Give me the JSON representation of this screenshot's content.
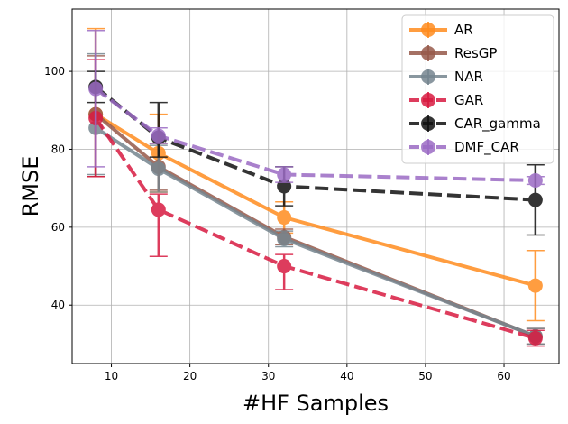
{
  "chart_data": {
    "type": "line",
    "title": "",
    "xlabel": "#HF Samples",
    "ylabel": "RMSE",
    "x": [
      8,
      16,
      32,
      64
    ],
    "xlim": [
      5,
      67
    ],
    "ylim": [
      25,
      116
    ],
    "xticks": [
      10,
      20,
      30,
      40,
      50,
      60
    ],
    "yticks": [
      40,
      60,
      80,
      100
    ],
    "grid": true,
    "legend_position": "top-right",
    "series": [
      {
        "name": "AR",
        "values": [
          89,
          79,
          62.5,
          45
        ],
        "err_low": [
          16,
          10,
          4,
          9
        ],
        "err_high": [
          22,
          10,
          4,
          9
        ],
        "color": "#ff8c1f",
        "dash": "solid"
      },
      {
        "name": "ResGP",
        "values": [
          89,
          75.5,
          57.5,
          32
        ],
        "err_low": [
          16,
          6,
          2,
          2
        ],
        "err_high": [
          15,
          6,
          2,
          2
        ],
        "color": "#96594a",
        "dash": "solid"
      },
      {
        "name": "NAR",
        "values": [
          85.5,
          75,
          57,
          32
        ],
        "err_low": [
          12,
          6,
          2,
          2
        ],
        "err_high": [
          19,
          6,
          2,
          2
        ],
        "color": "#75858f",
        "dash": "solid"
      },
      {
        "name": "GAR",
        "values": [
          88,
          64.5,
          50,
          31.5
        ],
        "err_low": [
          15,
          12,
          6,
          2
        ],
        "err_high": [
          15,
          4,
          3,
          2
        ],
        "color": "#d81b41",
        "dash": "dashed"
      },
      {
        "name": "CAR_gamma",
        "values": [
          96,
          83,
          70.5,
          67
        ],
        "err_low": [
          4,
          5,
          5,
          9
        ],
        "err_high": [
          4,
          9,
          5,
          9
        ],
        "color": "#111111",
        "dash": "dashed"
      },
      {
        "name": "DMF_CAR",
        "values": [
          95.5,
          83.5,
          73.5,
          72
        ],
        "err_low": [
          20,
          2,
          2,
          1
        ],
        "err_high": [
          15,
          2,
          2,
          1
        ],
        "color": "#9b6bc4",
        "dash": "dashed"
      }
    ]
  }
}
